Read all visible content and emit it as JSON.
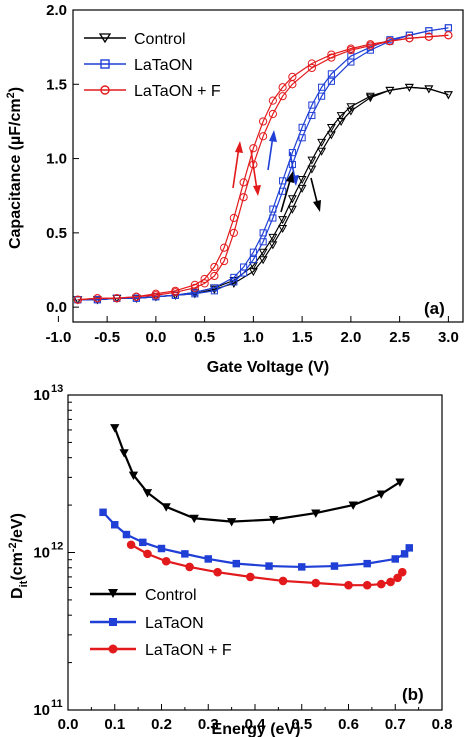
{
  "chart_data": [
    {
      "type": "line",
      "panel_label": "(a)",
      "xlabel": "Gate Voltage (V)",
      "ylabel_parts": [
        "Capacitance (",
        "µ",
        "F/cm",
        "2",
        ")"
      ],
      "xlim": [
        -1.0,
        3.0
      ],
      "ylim": [
        0,
        2.0
      ],
      "xticks": [
        "-1.0",
        "-0.5",
        "0.0",
        "0.5",
        "1.0",
        "1.5",
        "2.0",
        "2.5",
        "3.0"
      ],
      "yticks": [
        "0.0",
        "0.5",
        "1.0",
        "1.5",
        "2.0"
      ],
      "legend_position": "top-left",
      "series": [
        {
          "name": "Control",
          "color": "#000000",
          "marker": "triangle-down",
          "forward": {
            "x": [
              -0.8,
              -0.6,
              -0.4,
              -0.2,
              0.0,
              0.2,
              0.4,
              0.6,
              0.8,
              1.0,
              1.1,
              1.2,
              1.3,
              1.4,
              1.5,
              1.6,
              1.7,
              1.8,
              1.9,
              2.0,
              2.2,
              2.4,
              2.6,
              2.8,
              3.0
            ],
            "y": [
              0.05,
              0.05,
              0.06,
              0.06,
              0.07,
              0.08,
              0.09,
              0.12,
              0.16,
              0.24,
              0.32,
              0.42,
              0.53,
              0.66,
              0.8,
              0.93,
              1.05,
              1.16,
              1.25,
              1.32,
              1.41,
              1.46,
              1.48,
              1.47,
              1.43
            ]
          },
          "reverse": {
            "x": [
              3.0,
              2.8,
              2.6,
              2.4,
              2.2,
              2.0,
              1.9,
              1.8,
              1.7,
              1.6,
              1.5,
              1.4,
              1.3,
              1.2,
              1.1,
              1.0,
              0.8,
              0.6,
              0.4,
              0.2,
              0.0,
              -0.2,
              -0.4,
              -0.6,
              -0.8
            ],
            "y": [
              1.43,
              1.47,
              1.48,
              1.46,
              1.42,
              1.35,
              1.29,
              1.21,
              1.11,
              0.99,
              0.86,
              0.73,
              0.59,
              0.47,
              0.37,
              0.28,
              0.18,
              0.13,
              0.1,
              0.08,
              0.07,
              0.06,
              0.06,
              0.05,
              0.05
            ]
          }
        },
        {
          "name": "LaTaON",
          "color": "#1f3fd6",
          "marker": "square",
          "forward": {
            "x": [
              -0.8,
              -0.6,
              -0.4,
              -0.2,
              0.0,
              0.2,
              0.4,
              0.6,
              0.8,
              0.9,
              1.0,
              1.1,
              1.2,
              1.3,
              1.4,
              1.5,
              1.6,
              1.7,
              1.8,
              2.0,
              2.2,
              2.4,
              2.6,
              2.8,
              3.0
            ],
            "y": [
              0.05,
              0.05,
              0.06,
              0.06,
              0.07,
              0.08,
              0.09,
              0.11,
              0.17,
              0.23,
              0.32,
              0.44,
              0.6,
              0.78,
              0.96,
              1.14,
              1.29,
              1.42,
              1.52,
              1.65,
              1.73,
              1.79,
              1.83,
              1.86,
              1.88
            ]
          },
          "reverse": {
            "x": [
              3.0,
              2.8,
              2.6,
              2.4,
              2.2,
              2.0,
              1.8,
              1.7,
              1.6,
              1.5,
              1.4,
              1.3,
              1.2,
              1.1,
              1.0,
              0.9,
              0.8,
              0.6,
              0.4,
              0.2,
              0.0,
              -0.2,
              -0.4,
              -0.6,
              -0.8
            ],
            "y": [
              1.88,
              1.86,
              1.83,
              1.8,
              1.75,
              1.69,
              1.57,
              1.48,
              1.36,
              1.21,
              1.04,
              0.85,
              0.66,
              0.5,
              0.37,
              0.27,
              0.2,
              0.13,
              0.1,
              0.08,
              0.07,
              0.06,
              0.06,
              0.05,
              0.05
            ]
          }
        },
        {
          "name": "LaTaON + F",
          "color": "#e31a1c",
          "marker": "circle",
          "forward": {
            "x": [
              -0.8,
              -0.6,
              -0.4,
              -0.2,
              0.0,
              0.2,
              0.4,
              0.5,
              0.6,
              0.7,
              0.8,
              0.9,
              1.0,
              1.1,
              1.2,
              1.3,
              1.4,
              1.6,
              1.8,
              2.0,
              2.2,
              2.4,
              2.6,
              2.8,
              3.0
            ],
            "y": [
              0.05,
              0.06,
              0.06,
              0.07,
              0.08,
              0.1,
              0.13,
              0.16,
              0.21,
              0.31,
              0.5,
              0.74,
              0.96,
              1.15,
              1.3,
              1.42,
              1.5,
              1.61,
              1.68,
              1.73,
              1.76,
              1.79,
              1.81,
              1.82,
              1.83
            ]
          },
          "reverse": {
            "x": [
              3.0,
              2.8,
              2.6,
              2.4,
              2.2,
              2.0,
              1.8,
              1.6,
              1.4,
              1.3,
              1.2,
              1.1,
              1.0,
              0.9,
              0.8,
              0.7,
              0.6,
              0.5,
              0.4,
              0.2,
              0.0,
              -0.2,
              -0.4,
              -0.6,
              -0.8
            ],
            "y": [
              1.83,
              1.82,
              1.81,
              1.79,
              1.77,
              1.74,
              1.7,
              1.64,
              1.55,
              1.48,
              1.39,
              1.25,
              1.07,
              0.84,
              0.6,
              0.4,
              0.27,
              0.19,
              0.15,
              0.11,
              0.09,
              0.07,
              0.06,
              0.06,
              0.05
            ]
          }
        }
      ]
    },
    {
      "type": "line",
      "panel_label": "(b)",
      "xlabel": "Energy (eV)",
      "ylabel_parts": [
        "D",
        "it",
        "(cm",
        "-2",
        "/eV)"
      ],
      "xlim": [
        0,
        0.8
      ],
      "ylim": [
        100000000000,
        10000000000000
      ],
      "yscale": "log",
      "xticks": [
        "0.0",
        "0.1",
        "0.2",
        "0.3",
        "0.4",
        "0.5",
        "0.6",
        "0.7",
        "0.8"
      ],
      "yticks": [
        {
          "base": "10",
          "exp": "11"
        },
        {
          "base": "10",
          "exp": "12"
        },
        {
          "base": "10",
          "exp": "13"
        }
      ],
      "legend_position": "bottom-left",
      "series": [
        {
          "name": "Control",
          "color": "#000000",
          "marker": "triangle-down",
          "x": [
            0.1,
            0.12,
            0.14,
            0.17,
            0.21,
            0.27,
            0.35,
            0.44,
            0.53,
            0.61,
            0.67,
            0.71
          ],
          "y": [
            6200000000000.0,
            4300000000000.0,
            3100000000000.0,
            2400000000000.0,
            1950000000000.0,
            1650000000000.0,
            1570000000000.0,
            1620000000000.0,
            1780000000000.0,
            2000000000000.0,
            2350000000000.0,
            2800000000000.0
          ]
        },
        {
          "name": "LaTaON",
          "color": "#1f3fd6",
          "marker": "square",
          "x": [
            0.075,
            0.1,
            0.125,
            0.16,
            0.2,
            0.25,
            0.3,
            0.36,
            0.43,
            0.5,
            0.57,
            0.64,
            0.7,
            0.72,
            0.73
          ],
          "y": [
            1800000000000.0,
            1500000000000.0,
            1300000000000.0,
            1160000000000.0,
            1060000000000.0,
            980000000000.0,
            910000000000.0,
            850000000000.0,
            820000000000.0,
            810000000000.0,
            820000000000.0,
            850000000000.0,
            910000000000.0,
            980000000000.0,
            1070000000000.0
          ]
        },
        {
          "name": "LaTaON + F",
          "color": "#e31a1c",
          "marker": "circle",
          "x": [
            0.135,
            0.17,
            0.21,
            0.26,
            0.32,
            0.39,
            0.46,
            0.53,
            0.6,
            0.64,
            0.67,
            0.69,
            0.705,
            0.715
          ],
          "y": [
            1120000000000.0,
            980000000000.0,
            880000000000.0,
            810000000000.0,
            750000000000.0,
            700000000000.0,
            660000000000.0,
            640000000000.0,
            620000000000.0,
            620000000000.0,
            630000000000.0,
            650000000000.0,
            690000000000.0,
            750000000000.0
          ]
        }
      ]
    }
  ]
}
